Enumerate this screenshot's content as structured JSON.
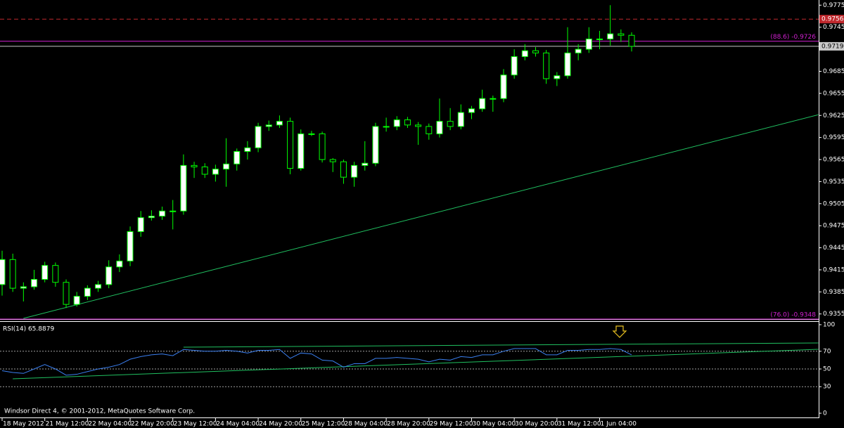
{
  "chart_data": [
    {
      "type": "candlestick",
      "categories": [
        "18 May 2012",
        null,
        null,
        null,
        "21 May 12:00",
        null,
        null,
        null,
        "22 May 04:00",
        null,
        null,
        null,
        "22 May 20:00",
        null,
        null,
        null,
        "23 May 12:00",
        null,
        null,
        null,
        "24 May 04:00",
        null,
        null,
        null,
        "24 May 20:00",
        null,
        null,
        null,
        "25 May 12:00",
        null,
        null,
        null,
        "28 May 04:00",
        null,
        null,
        null,
        "28 May 20:00",
        null,
        null,
        null,
        "29 May 12:00",
        null,
        null,
        null,
        "30 May 04:00",
        null,
        null,
        null,
        "30 May 20:00",
        null,
        null,
        null,
        "31 May 12:00",
        null,
        null,
        null,
        "1 Jun 04:00",
        null,
        null,
        null
      ],
      "open": [
        0.9395,
        0.9429,
        0.939,
        0.9392,
        0.9402,
        0.9421,
        0.9398,
        0.9368,
        0.9379,
        0.939,
        0.9395,
        0.9419,
        0.9427,
        0.9467,
        0.9486,
        0.9488,
        0.9495,
        0.9495,
        0.9557,
        0.9555,
        0.9545,
        0.9552,
        0.9559,
        0.9576,
        0.9581,
        0.961,
        0.9612,
        0.9617,
        0.9553,
        0.96,
        0.96,
        0.9565,
        0.9562,
        0.9541,
        0.9557,
        0.956,
        0.961,
        0.961,
        0.9619,
        0.9612,
        0.961,
        0.96,
        0.9617,
        0.961,
        0.9629,
        0.9634,
        0.9648,
        0.9648,
        0.968,
        0.9705,
        0.9713,
        0.971,
        0.9675,
        0.9679,
        0.971,
        0.9715,
        0.9729,
        0.9729,
        0.9736,
        0.9734
      ],
      "high": [
        0.9441,
        0.9437,
        0.9398,
        0.9415,
        0.9426,
        0.9425,
        0.9402,
        0.9385,
        0.9394,
        0.94,
        0.9428,
        0.9436,
        0.9474,
        0.9495,
        0.9496,
        0.9501,
        0.951,
        0.9572,
        0.9562,
        0.956,
        0.9558,
        0.9594,
        0.958,
        0.959,
        0.9615,
        0.9618,
        0.9625,
        0.9622,
        0.9606,
        0.9604,
        0.9603,
        0.9567,
        0.9565,
        0.9562,
        0.959,
        0.9615,
        0.9622,
        0.9624,
        0.9623,
        0.9616,
        0.9614,
        0.9648,
        0.9635,
        0.964,
        0.9638,
        0.966,
        0.9652,
        0.9688,
        0.9715,
        0.9722,
        0.9718,
        0.9714,
        0.9684,
        0.9745,
        0.9722,
        0.9745,
        0.974,
        0.9775,
        0.9742,
        0.9738
      ],
      "low": [
        0.938,
        0.9385,
        0.9372,
        0.9388,
        0.9398,
        0.9392,
        0.9363,
        0.9365,
        0.9374,
        0.9385,
        0.939,
        0.9412,
        0.942,
        0.946,
        0.9482,
        0.9483,
        0.947,
        0.949,
        0.954,
        0.954,
        0.9535,
        0.9528,
        0.955,
        0.9565,
        0.9575,
        0.9604,
        0.9608,
        0.9545,
        0.955,
        0.9597,
        0.9561,
        0.9548,
        0.9532,
        0.9528,
        0.955,
        0.9556,
        0.9603,
        0.9605,
        0.9608,
        0.9585,
        0.9592,
        0.9595,
        0.9605,
        0.9606,
        0.962,
        0.963,
        0.963,
        0.9643,
        0.9675,
        0.97,
        0.9705,
        0.9668,
        0.9665,
        0.9675,
        0.97,
        0.971,
        0.9715,
        0.972,
        0.9725,
        0.9712
      ],
      "close": [
        0.9429,
        0.939,
        0.9392,
        0.9402,
        0.9421,
        0.9398,
        0.9368,
        0.9379,
        0.939,
        0.9395,
        0.9419,
        0.9427,
        0.9467,
        0.9486,
        0.9488,
        0.9495,
        0.9495,
        0.9557,
        0.9555,
        0.9545,
        0.9552,
        0.9559,
        0.9576,
        0.9581,
        0.961,
        0.9612,
        0.9617,
        0.9553,
        0.96,
        0.96,
        0.9565,
        0.9562,
        0.9541,
        0.9557,
        0.956,
        0.961,
        0.961,
        0.9619,
        0.9612,
        0.961,
        0.96,
        0.9617,
        0.961,
        0.9629,
        0.9634,
        0.9648,
        0.9648,
        0.968,
        0.9705,
        0.9713,
        0.971,
        0.9675,
        0.9679,
        0.971,
        0.9715,
        0.9729,
        0.9729,
        0.9736,
        0.9734,
        0.9719
      ],
      "up_color": "#ffffff",
      "down_color": "#000000",
      "outline_color": "#00ff00",
      "ylim": [
        0.9349,
        0.9782
      ],
      "yticks": [
        0.9775,
        0.9745,
        0.9685,
        0.9655,
        0.9625,
        0.9595,
        0.9565,
        0.9535,
        0.9505,
        0.9475,
        0.9445,
        0.9415,
        0.9385,
        0.9355
      ],
      "hlines": [
        {
          "value": 0.9756,
          "label": "0.9756",
          "color": "#c0282d",
          "style": "dashed",
          "label_style": "box"
        },
        {
          "value": 0.9726,
          "label": "(88.6) -0.9726",
          "color": "#d020d0",
          "style": "solid",
          "label_style": "text"
        },
        {
          "value": 0.9719,
          "label": "0.9719",
          "color": "#c8c8c8",
          "style": "solid",
          "label_style": "box"
        },
        {
          "value": 0.9348,
          "label": "(76.0) -0.9348",
          "color": "#d020d0",
          "style": "solid",
          "label_style": "text"
        }
      ],
      "trendlines": [
        {
          "x": [
            2,
            76.5
          ],
          "y": [
            0.9349,
            0.9626
          ],
          "color": "#20c060"
        }
      ],
      "footer": "Windsor Direct 4, © 2001-2012, MetaQuotes Software Corp."
    },
    {
      "type": "line",
      "title": "RSI(14) 65.8879",
      "series": [
        {
          "name": "RSI(14)",
          "color": "#3a7ff0",
          "values": [
            48,
            46,
            45,
            50,
            55,
            50,
            43,
            44,
            47,
            50,
            52,
            55,
            61,
            64,
            66,
            67,
            65,
            72,
            71,
            70,
            70,
            71,
            70,
            68,
            71,
            71,
            72,
            62,
            68,
            67,
            60,
            59,
            52,
            56,
            56,
            62,
            62,
            63,
            62,
            61,
            58,
            61,
            60,
            64,
            63,
            66,
            66,
            70,
            73,
            73,
            73,
            66,
            66,
            71,
            71,
            72,
            72,
            73,
            72,
            65.8879
          ]
        }
      ],
      "ylim": [
        0,
        100
      ],
      "yticks": [
        0,
        30,
        50,
        70,
        100
      ],
      "levels": [
        30,
        50,
        70
      ],
      "trendlines": [
        {
          "x": [
            17,
            76.5
          ],
          "y": [
            74.6,
            79.4
          ],
          "color": "#20c060"
        },
        {
          "x": [
            1,
            76.5
          ],
          "y": [
            38.9,
            72.2
          ],
          "color": "#20c060"
        }
      ]
    }
  ]
}
